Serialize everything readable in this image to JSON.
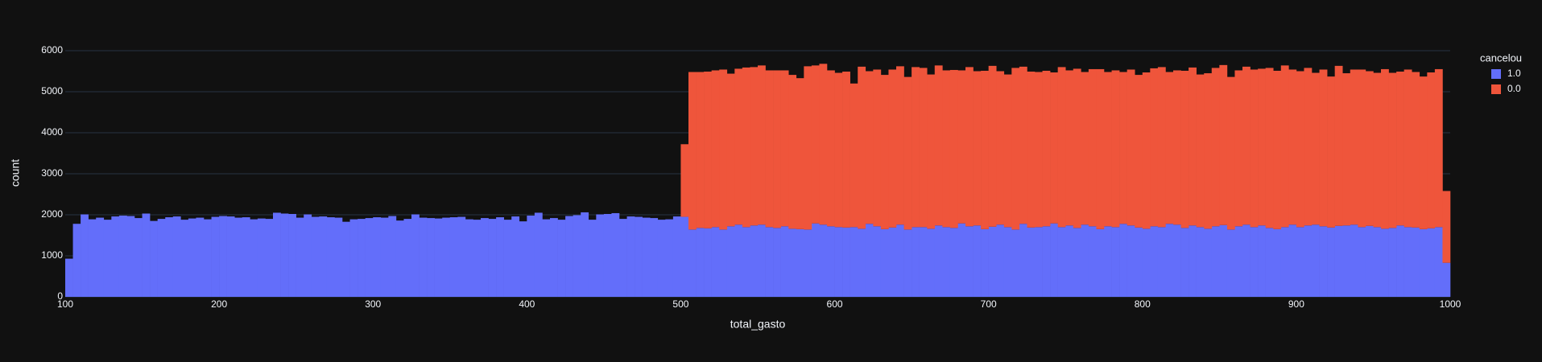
{
  "chart_data": {
    "type": "histogram",
    "barmode": "stack",
    "xlabel": "total_gasto",
    "ylabel": "count",
    "legend_title": "cancelou",
    "legend": "right",
    "xlim": [
      100,
      1000
    ],
    "ylim": [
      0,
      6000
    ],
    "xticks": [
      100,
      200,
      300,
      400,
      500,
      600,
      700,
      800,
      900,
      1000
    ],
    "yticks": [
      0,
      1000,
      2000,
      3000,
      4000,
      5000,
      6000
    ],
    "grid": true,
    "bins": [
      100,
      105,
      110,
      115,
      120,
      125,
      130,
      135,
      140,
      145,
      150,
      155,
      160,
      165,
      170,
      175,
      180,
      185,
      190,
      195,
      200,
      205,
      210,
      215,
      220,
      225,
      230,
      235,
      240,
      245,
      250,
      255,
      260,
      265,
      270,
      275,
      280,
      285,
      290,
      295,
      300,
      305,
      310,
      315,
      320,
      325,
      330,
      335,
      340,
      345,
      350,
      355,
      360,
      365,
      370,
      375,
      380,
      385,
      390,
      395,
      400,
      405,
      410,
      415,
      420,
      425,
      430,
      435,
      440,
      445,
      450,
      455,
      460,
      465,
      470,
      475,
      480,
      485,
      490,
      495,
      500,
      505,
      510,
      515,
      520,
      525,
      530,
      535,
      540,
      545,
      550,
      555,
      560,
      565,
      570,
      575,
      580,
      585,
      590,
      595,
      600,
      605,
      610,
      615,
      620,
      625,
      630,
      635,
      640,
      645,
      650,
      655,
      660,
      665,
      670,
      675,
      680,
      685,
      690,
      695,
      700,
      705,
      710,
      715,
      720,
      725,
      730,
      735,
      740,
      745,
      750,
      755,
      760,
      765,
      770,
      775,
      780,
      785,
      790,
      795,
      800,
      805,
      810,
      815,
      820,
      825,
      830,
      835,
      840,
      845,
      850,
      855,
      860,
      865,
      870,
      875,
      880,
      885,
      890,
      895,
      900,
      905,
      910,
      915,
      920,
      925,
      930,
      935,
      940,
      945,
      950,
      955,
      960,
      965,
      970,
      975,
      980,
      985,
      990,
      995,
      1000
    ],
    "series": [
      {
        "name": "1.0",
        "color": "#636efa",
        "values": [
          930,
          1780,
          2010,
          1890,
          1930,
          1880,
          1960,
          1980,
          1970,
          1920,
          2030,
          1850,
          1900,
          1940,
          1960,
          1880,
          1910,
          1930,
          1890,
          1950,
          1970,
          1960,
          1930,
          1940,
          1890,
          1910,
          1900,
          2050,
          2030,
          2020,
          1930,
          2010,
          1950,
          1960,
          1940,
          1930,
          1830,
          1890,
          1900,
          1920,
          1940,
          1930,
          1970,
          1860,
          1900,
          2010,
          1930,
          1920,
          1910,
          1930,
          1940,
          1950,
          1890,
          1880,
          1920,
          1900,
          1940,
          1880,
          1960,
          1840,
          1980,
          2050,
          1890,
          1920,
          1880,
          1970,
          1990,
          2060,
          1880,
          2010,
          2020,
          2040,
          1900,
          1960,
          1950,
          1930,
          1920,
          1880,
          1890,
          1960,
          1950,
          1640,
          1680,
          1670,
          1700,
          1640,
          1720,
          1760,
          1700,
          1740,
          1760,
          1700,
          1680,
          1720,
          1660,
          1650,
          1640,
          1790,
          1760,
          1720,
          1700,
          1690,
          1700,
          1660,
          1780,
          1720,
          1650,
          1690,
          1760,
          1640,
          1700,
          1700,
          1660,
          1740,
          1700,
          1680,
          1790,
          1720,
          1740,
          1650,
          1710,
          1760,
          1700,
          1640,
          1780,
          1690,
          1700,
          1720,
          1790,
          1700,
          1740,
          1680,
          1760,
          1720,
          1650,
          1720,
          1700,
          1780,
          1740,
          1690,
          1660,
          1720,
          1700,
          1780,
          1760,
          1680,
          1740,
          1700,
          1660,
          1720,
          1750,
          1640,
          1720,
          1760,
          1700,
          1740,
          1680,
          1650,
          1700,
          1760,
          1700,
          1740,
          1760,
          1720,
          1690,
          1730,
          1740,
          1760,
          1700,
          1730,
          1700,
          1660,
          1680,
          1740,
          1700,
          1690,
          1650,
          1670,
          1700,
          830
        ]
      },
      {
        "name": "0.0",
        "color": "#EF553B",
        "values": [
          0,
          0,
          0,
          0,
          0,
          0,
          0,
          0,
          0,
          0,
          0,
          0,
          0,
          0,
          0,
          0,
          0,
          0,
          0,
          0,
          0,
          0,
          0,
          0,
          0,
          0,
          0,
          0,
          0,
          0,
          0,
          0,
          0,
          0,
          0,
          0,
          0,
          0,
          0,
          0,
          0,
          0,
          0,
          0,
          0,
          0,
          0,
          0,
          0,
          0,
          0,
          0,
          0,
          0,
          0,
          0,
          0,
          0,
          0,
          0,
          0,
          0,
          0,
          0,
          0,
          0,
          0,
          0,
          0,
          0,
          0,
          0,
          0,
          0,
          0,
          0,
          0,
          0,
          0,
          0,
          1770,
          3840,
          3800,
          3820,
          3820,
          3900,
          3720,
          3800,
          3890,
          3860,
          3880,
          3820,
          3840,
          3800,
          3750,
          3680,
          3980,
          3850,
          3920,
          3800,
          3760,
          3800,
          3500,
          3950,
          3720,
          3820,
          3760,
          3850,
          3860,
          3720,
          3900,
          3880,
          3760,
          3900,
          3820,
          3850,
          3730,
          3880,
          3760,
          3860,
          3920,
          3740,
          3720,
          3940,
          3830,
          3800,
          3780,
          3790,
          3680,
          3900,
          3780,
          3880,
          3720,
          3830,
          3900,
          3760,
          3820,
          3700,
          3800,
          3720,
          3810,
          3850,
          3900,
          3700,
          3760,
          3830,
          3850,
          3720,
          3790,
          3860,
          3900,
          3720,
          3800,
          3850,
          3840,
          3820,
          3900,
          3860,
          3940,
          3780,
          3800,
          3840,
          3700,
          3820,
          3680,
          3900,
          3710,
          3780,
          3840,
          3770,
          3760,
          3890,
          3780,
          3750,
          3840,
          3790,
          3720,
          3800,
          3850,
          1750
        ]
      }
    ]
  }
}
